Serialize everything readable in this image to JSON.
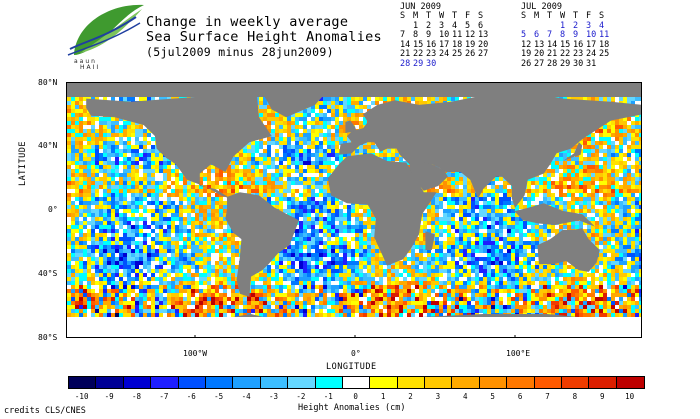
{
  "logo": {
    "line1": "aaun",
    "line2": "HAII",
    "icon": "leaf-logo-icon"
  },
  "title": {
    "line1": "Change in weekly average",
    "line2": "Sea Surface Height Anomalies",
    "subtitle": "(5jul2009 minus 28jun2009)"
  },
  "calendars": [
    {
      "month": "JUN 2009",
      "days_header": [
        "S",
        "M",
        "T",
        "W",
        "T",
        "F",
        "S"
      ],
      "weeks": [
        [
          "",
          "1",
          "2",
          "3",
          "4",
          "5",
          "6"
        ],
        [
          "7",
          "8",
          "9",
          "10",
          "11",
          "12",
          "13"
        ],
        [
          "14",
          "15",
          "16",
          "17",
          "18",
          "19",
          "20"
        ],
        [
          "21",
          "22",
          "23",
          "24",
          "25",
          "26",
          "27"
        ],
        [
          "28",
          "29",
          "30",
          "",
          "",
          "",
          ""
        ]
      ],
      "highlighted": [
        "28",
        "29",
        "30"
      ]
    },
    {
      "month": "JUL 2009",
      "days_header": [
        "S",
        "M",
        "T",
        "W",
        "T",
        "F",
        "S"
      ],
      "weeks": [
        [
          "",
          "",
          "",
          "1",
          "2",
          "3",
          "4"
        ],
        [
          "5",
          "6",
          "7",
          "8",
          "9",
          "10",
          "11"
        ],
        [
          "12",
          "13",
          "14",
          "15",
          "16",
          "17",
          "18"
        ],
        [
          "19",
          "20",
          "21",
          "22",
          "23",
          "24",
          "25"
        ],
        [
          "26",
          "27",
          "28",
          "29",
          "30",
          "31",
          ""
        ]
      ],
      "highlighted": [
        "1",
        "2",
        "3",
        "4",
        "5",
        "6",
        "7",
        "8",
        "9",
        "10",
        "11"
      ]
    }
  ],
  "map": {
    "y_axis_title": "LATITUDE",
    "x_axis_title": "LONGITUDE",
    "y_ticks": [
      "80°N",
      "40°N",
      "0°",
      "40°S",
      "80°S"
    ],
    "x_ticks": [
      "100°W",
      "0°",
      "100°E"
    ],
    "land_color": "#7f7f7f",
    "ice_color": "#ffffff"
  },
  "colorbar": {
    "title": "Height Anomalies (cm)",
    "labels": [
      "-10",
      "-9",
      "-8",
      "-7",
      "-6",
      "-5",
      "-4",
      "-3",
      "-2",
      "-1",
      "0",
      "1",
      "2",
      "3",
      "4",
      "5",
      "6",
      "7",
      "8",
      "9",
      "10"
    ],
    "colors": [
      "#00005a",
      "#000096",
      "#0000d2",
      "#1e1eff",
      "#0050ff",
      "#0078ff",
      "#1ea0ff",
      "#3cbeff",
      "#64d7ff",
      "#00ffff",
      "#ffffff",
      "#ffff00",
      "#ffe100",
      "#ffc800",
      "#ffaa00",
      "#ff9100",
      "#ff7800",
      "#ff5a00",
      "#f03c00",
      "#dc1e00",
      "#be0000"
    ]
  },
  "credits": "credits CLS/CNES"
}
